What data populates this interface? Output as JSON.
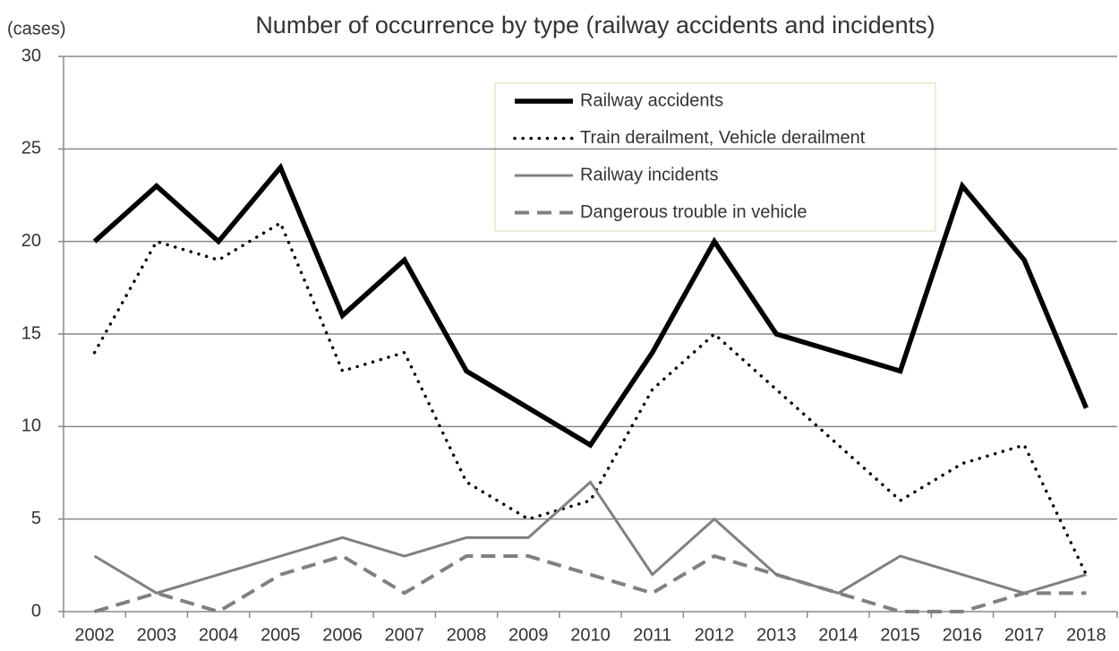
{
  "chart_data": {
    "type": "line",
    "title": "Number of occurrence by type (railway accidents and incidents)",
    "y_label": "(cases)",
    "categories": [
      "2002",
      "2003",
      "2004",
      "2005",
      "2006",
      "2007",
      "2008",
      "2009",
      "2010",
      "2011",
      "2012",
      "2013",
      "2014",
      "2015",
      "2016",
      "2017",
      "2018"
    ],
    "series": [
      {
        "name": "Railway accidents",
        "color": "#000000",
        "style": "solid",
        "values": [
          20,
          23,
          20,
          24,
          16,
          19,
          13,
          11,
          9,
          14,
          20,
          15,
          14,
          13,
          23,
          19,
          11
        ]
      },
      {
        "name": "Train derailment, Vehicle derailment",
        "color": "#000000",
        "style": "dotted",
        "values": [
          14,
          20,
          19,
          21,
          13,
          14,
          7,
          5,
          6,
          12,
          15,
          12,
          9,
          6,
          8,
          9,
          2
        ]
      },
      {
        "name": "Railway incidents",
        "color": "#808080",
        "style": "solid",
        "values": [
          3,
          1,
          2,
          3,
          4,
          3,
          4,
          4,
          7,
          2,
          5,
          2,
          1,
          3,
          2,
          1,
          2
        ]
      },
      {
        "name": "Dangerous trouble in vehicle",
        "color": "#808080",
        "style": "dashed",
        "values": [
          0,
          1,
          0,
          2,
          3,
          1,
          3,
          3,
          2,
          1,
          3,
          2,
          1,
          0,
          0,
          1,
          1
        ]
      }
    ],
    "ylim": [
      0,
      30
    ],
    "yticks": [
      0,
      5,
      10,
      15,
      20,
      25,
      30
    ],
    "grid": true,
    "legend": "top-right"
  }
}
